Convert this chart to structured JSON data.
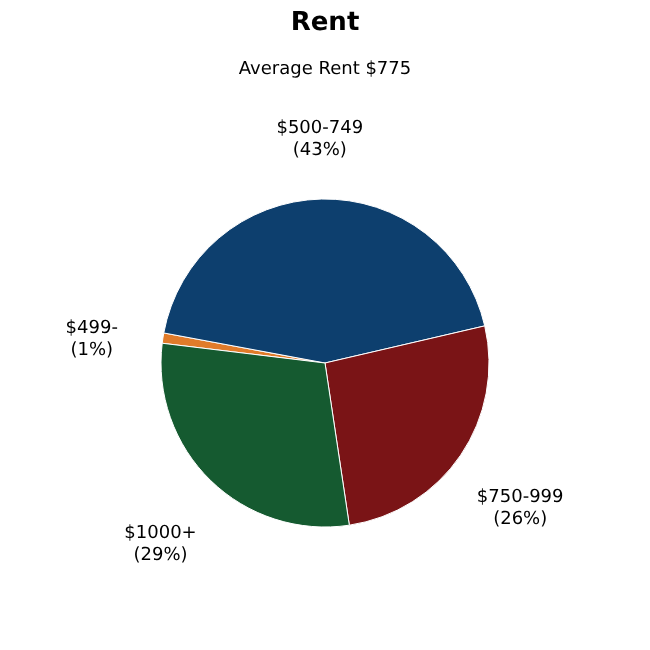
{
  "chart_data": {
    "type": "pie",
    "title": "Rent",
    "subtitle": "Average Rent  $775",
    "categories": [
      "$499-",
      "$500-749",
      "$750-999",
      "$1000+"
    ],
    "values": [
      1,
      43,
      26,
      29
    ],
    "value_labels": [
      "(1%)",
      "(43%)",
      "(26%)",
      "(29%)"
    ],
    "colors": [
      "#e07b2a",
      "#0d3f6e",
      "#7a1416",
      "#155a30"
    ],
    "legend": false
  }
}
